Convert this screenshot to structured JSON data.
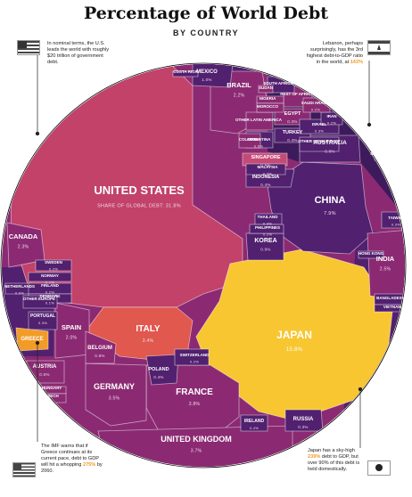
{
  "header": {
    "title": "Percentage of World Debt",
    "subtitle": "BY COUNTRY"
  },
  "notes": {
    "us": "In nominal terms, the U.S. leads the world with roughly $20 trillion of government debt.",
    "lebanon_a": "Lebanon, perhaps surprisingly, has the 3rd highest debt-to-GDP ratio in the world, at ",
    "lebanon_b": "143%",
    "greece_a": "The IMF warns that if Greece continues at its current pace, debt to GDP will hit a whopping ",
    "greece_b": "275%",
    "greece_c": " by 2060.",
    "japan_a": "Japan has a sky-high ",
    "japan_b": "239%",
    "japan_c": " debt to GDP, but over 90% of this debt is held domestically."
  },
  "colors": {
    "us": "#c2426a",
    "magenta": "#8b2a72",
    "purple": "#51206f",
    "deep": "#3d1a5b",
    "italy": "#e0584e",
    "japan": "#f7c631",
    "orange": "#f29b26",
    "pink": "#c44b76"
  },
  "chart_data": {
    "type": "voronoi-treemap",
    "title": "Percentage of World Debt",
    "subtitle": "BY COUNTRY",
    "unit": "%",
    "value_label": "SHARE OF GLOBAL DEBT",
    "cells": [
      {
        "name": "UNITED STATES",
        "value": 31.8,
        "label": "SHARE OF GLOBAL DEBT: 31.8%"
      },
      {
        "name": "JAPAN",
        "value": 15.8,
        "label": "15.8%"
      },
      {
        "name": "CHINA",
        "value": 7.9,
        "label": "7.9%"
      },
      {
        "name": "ITALY",
        "value": 3.4,
        "label": "3.4%"
      },
      {
        "name": "FRANCE",
        "value": 3.8,
        "label": "3.8%"
      },
      {
        "name": "GERMANY",
        "value": 3.5,
        "label": "3.5%"
      },
      {
        "name": "UNITED KINGDOM",
        "value": 3.7,
        "label": "3.7%"
      },
      {
        "name": "BRAZIL",
        "value": 2.2,
        "label": "2.2%"
      },
      {
        "name": "CANADA",
        "value": 2.3,
        "label": "2.3%"
      },
      {
        "name": "INDIA",
        "value": 2.5,
        "label": "2.5%"
      },
      {
        "name": "SPAIN",
        "value": 2.0,
        "label": "2.0%"
      },
      {
        "name": "MEXICO",
        "value": 1.0,
        "label": "1.0%"
      },
      {
        "name": "KOREA",
        "value": 0.9,
        "label": "0.9%"
      },
      {
        "name": "BELGIUM",
        "value": 0.8,
        "label": "0.8%"
      },
      {
        "name": "AUSTRALIA",
        "value": 0.8,
        "label": "0.8%"
      },
      {
        "name": "POLAND",
        "value": 0.4,
        "label": "0.4%"
      },
      {
        "name": "RUSSIA",
        "value": 0.3,
        "label": "0.3%"
      },
      {
        "name": "AUSTRIA",
        "value": 0.5,
        "label": "0.5%"
      },
      {
        "name": "INDONESIA",
        "value": 0.4,
        "label": "0.4%"
      },
      {
        "name": "SINGAPORE",
        "value": 0.5,
        "label": "0.5%"
      },
      {
        "name": "EGYPT",
        "value": 0.3,
        "label": "0.3%"
      },
      {
        "name": "TURKEY",
        "value": 0.4,
        "label": "0.4%"
      },
      {
        "name": "NETHERLANDS",
        "value": 0.6,
        "label": "0.6%"
      },
      {
        "name": "PORTUGAL",
        "value": 0.3,
        "label": "0.3%"
      },
      {
        "name": "SWITZERLAND",
        "value": 0.2,
        "label": "0.2%"
      },
      {
        "name": "FINLAND",
        "value": 0.2,
        "label": "0.2%"
      },
      {
        "name": "NORWAY",
        "value": 0.1,
        "label": "0.1%"
      },
      {
        "name": "SWEDEN",
        "value": 0.2,
        "label": "0.2%"
      },
      {
        "name": "DENMARK",
        "value": 0.1,
        "label": "0.1%"
      },
      {
        "name": "IRELAND",
        "value": 0.4,
        "label": "0.4%"
      },
      {
        "name": "MALAYSIA",
        "value": 0.3,
        "label": "0.3%"
      },
      {
        "name": "THAILAND",
        "value": 0.3,
        "label": "0.3%"
      },
      {
        "name": "PHILIPPINES",
        "value": 0.2,
        "label": "0.2%"
      },
      {
        "name": "TAIWAN",
        "value": 0.3,
        "label": "0.3%"
      },
      {
        "name": "GREECE",
        "value": 0.5,
        "label": ""
      },
      {
        "name": "ARGENTINA",
        "value": 0.5,
        "label": "0.5%"
      },
      {
        "name": "ISRAEL",
        "value": 0.3,
        "label": "0.3%"
      },
      {
        "name": "IRAN",
        "value": 0.2,
        "label": "0.2%"
      },
      {
        "name": "REST OF AFRICA",
        "value": 0.3,
        "label": ""
      },
      {
        "name": "SAUDI ARABIA",
        "value": 0.2,
        "label": "0.2%"
      },
      {
        "name": "HUNGARY",
        "value": 0.1,
        "label": ""
      },
      {
        "name": "CZECH",
        "value": 0.1,
        "label": ""
      },
      {
        "name": "OTHER EUROPE",
        "value": 0.1,
        "label": ""
      },
      {
        "name": "NEW ZEALAND",
        "value": 0.1,
        "label": ""
      },
      {
        "name": "SOUTH AFRICA",
        "value": 0.3,
        "label": ""
      },
      {
        "name": "COSTA RICA",
        "value": 0.0,
        "label": ""
      },
      {
        "name": "COLOMBIA",
        "value": 0.3,
        "label": ""
      },
      {
        "name": "OTHER LATIN AMERICA",
        "value": 0.0,
        "label": ""
      },
      {
        "name": "NIGERIA",
        "value": 0.0,
        "label": ""
      },
      {
        "name": "MOROCCO",
        "value": 0.0,
        "label": ""
      },
      {
        "name": "SUDAN",
        "value": 0.0,
        "label": ""
      },
      {
        "name": "OTHER MIDDLE EAST",
        "value": 0.0,
        "label": ""
      },
      {
        "name": "BANGLADESH",
        "value": 0.0,
        "label": ""
      },
      {
        "name": "VIETNAM",
        "value": 0.0,
        "label": ""
      },
      {
        "name": "HONG KONG",
        "value": 0.0,
        "label": ""
      }
    ]
  }
}
